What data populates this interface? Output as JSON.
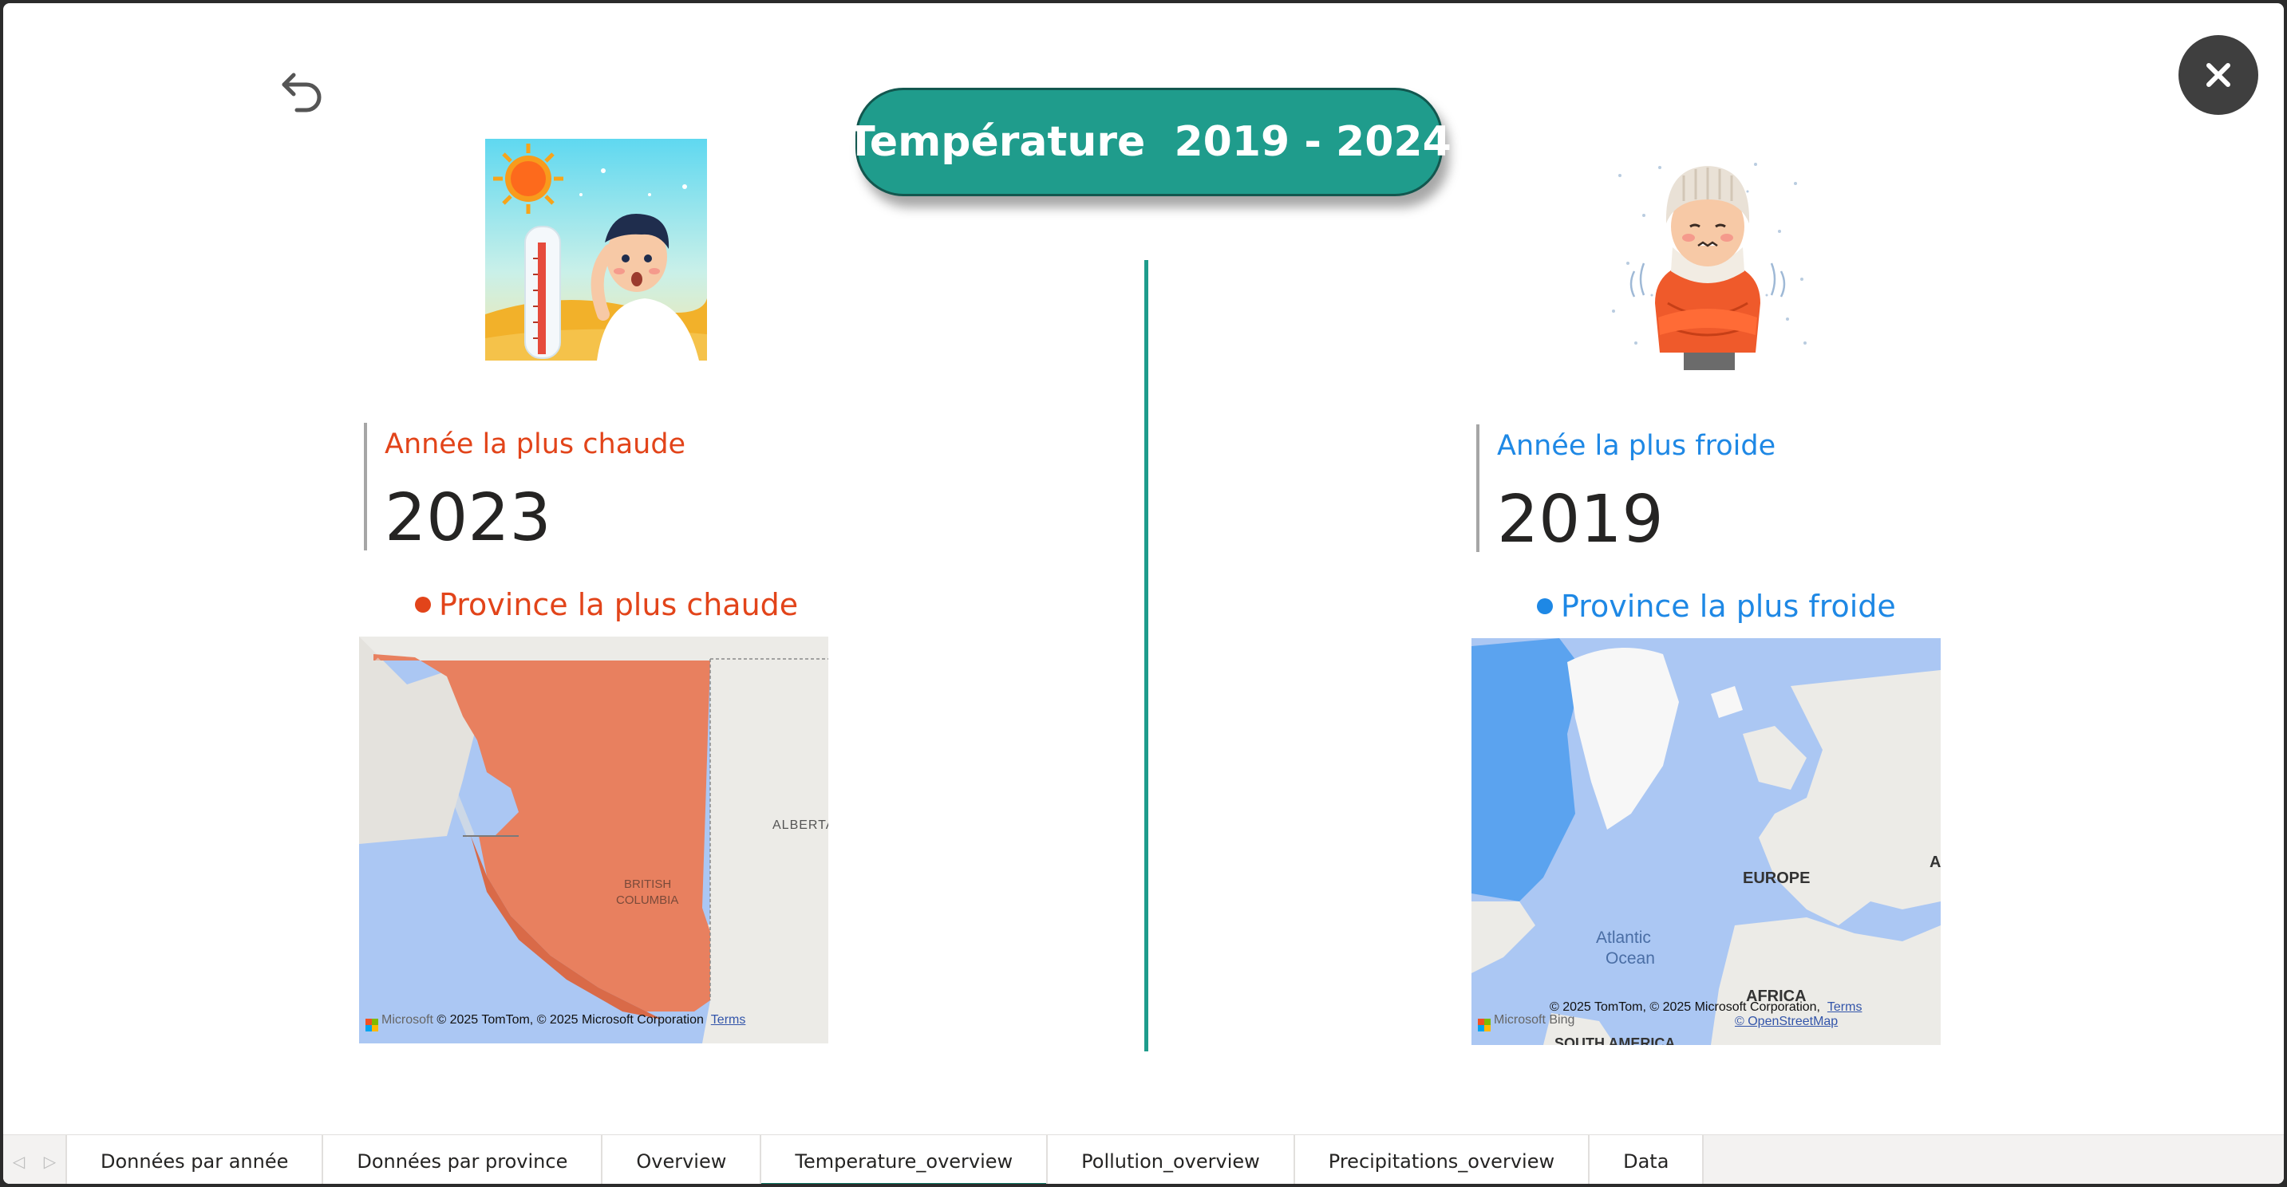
{
  "header": {
    "title": "Température  2019 - 2024"
  },
  "hot": {
    "label": "Année la plus chaude",
    "value": "2023",
    "province_heading": "Province la plus chaude",
    "map": {
      "labels": [
        "ALBERTA",
        "BRITISH",
        "COLUMBIA"
      ],
      "attribution": "© 2025 TomTom, © 2025 Microsoft Corporation",
      "terms": "Terms",
      "brand": "Microsoft"
    }
  },
  "cold": {
    "label": "Année la plus froide",
    "value": "2019",
    "province_heading": "Province la plus froide",
    "map": {
      "labels": [
        "EUROPE",
        "Atlantic",
        "Ocean",
        "AFRICA",
        "SOUTH AMERICA",
        "A"
      ],
      "attribution": "© 2025 TomTom, © 2025 Microsoft Corporation,",
      "terms": "Terms",
      "osm": "© OpenStreetMap",
      "brand": "Microsoft Bing"
    }
  },
  "tabs": [
    {
      "label": "Données par année"
    },
    {
      "label": "Données par province"
    },
    {
      "label": "Overview"
    },
    {
      "label": "Temperature_overview",
      "active": true
    },
    {
      "label": "Pollution_overview"
    },
    {
      "label": "Precipitations_overview"
    },
    {
      "label": "Data"
    }
  ],
  "colors": {
    "accent": "#1f9c8c",
    "hot": "#e2441a",
    "cold": "#1e88e5",
    "hot_region": "#e8805f",
    "cold_region": "#5ba3ef"
  },
  "icons": {
    "back": "undo-arrow-icon",
    "close": "close-icon",
    "prev": "chevron-left-icon",
    "next": "chevron-right-icon"
  }
}
